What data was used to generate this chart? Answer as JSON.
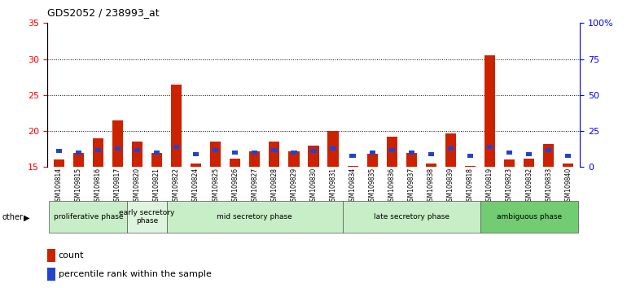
{
  "title": "GDS2052 / 238993_at",
  "samples": [
    "GSM109814",
    "GSM109815",
    "GSM109816",
    "GSM109817",
    "GSM109820",
    "GSM109821",
    "GSM109822",
    "GSM109824",
    "GSM109825",
    "GSM109826",
    "GSM109827",
    "GSM109828",
    "GSM109829",
    "GSM109830",
    "GSM109831",
    "GSM109834",
    "GSM109835",
    "GSM109836",
    "GSM109837",
    "GSM109838",
    "GSM109839",
    "GSM109818",
    "GSM109819",
    "GSM109823",
    "GSM109832",
    "GSM109833",
    "GSM109840"
  ],
  "red_values": [
    16.0,
    17.0,
    19.0,
    21.5,
    18.5,
    17.0,
    26.5,
    15.5,
    18.5,
    16.2,
    17.2,
    18.5,
    17.2,
    18.0,
    20.0,
    15.2,
    16.8,
    19.2,
    17.0,
    15.5,
    19.7,
    15.2,
    30.5,
    16.0,
    16.2,
    18.2,
    15.5
  ],
  "blue_pct": [
    11,
    10,
    12,
    13,
    12,
    10,
    14,
    9,
    12,
    10,
    10,
    12,
    10,
    11,
    13,
    8,
    10,
    12,
    10,
    9,
    13,
    8,
    14,
    10,
    9,
    12,
    8
  ],
  "phases": [
    {
      "label": "proliferative phase",
      "start": 0,
      "end": 4,
      "color": "#c8eec8"
    },
    {
      "label": "early secretory\nphase",
      "start": 4,
      "end": 6,
      "color": "#e0f5e0"
    },
    {
      "label": "mid secretory phase",
      "start": 6,
      "end": 15,
      "color": "#c8eec8"
    },
    {
      "label": "late secretory phase",
      "start": 15,
      "end": 22,
      "color": "#c8eec8"
    },
    {
      "label": "ambiguous phase",
      "start": 22,
      "end": 27,
      "color": "#72cc72"
    }
  ],
  "ymin": 15,
  "ymax": 35,
  "yticks_left": [
    15,
    20,
    25,
    30,
    35
  ],
  "yticks_right": [
    0,
    25,
    50,
    75,
    100
  ],
  "bar_color_red": "#cc2200",
  "bar_color_blue": "#2244cc",
  "tick_bg": "#d0d0d0"
}
